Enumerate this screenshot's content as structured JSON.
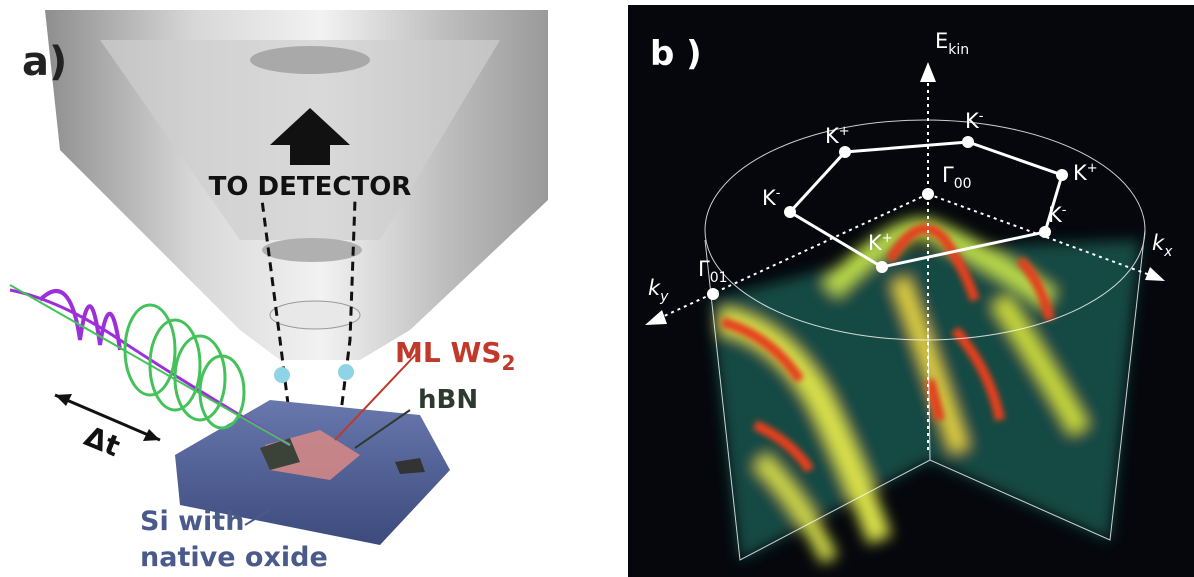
{
  "panel_a": {
    "label": "a)",
    "detector": "TO DETECTOR",
    "sample": {
      "main": "ML WS",
      "sub": "2"
    },
    "spacer": "hBN",
    "delay": "Δt",
    "substrate": [
      "Si with",
      "native oxide"
    ]
  },
  "panel_b": {
    "label": "b )",
    "energy_axis": {
      "main": "E",
      "sub": "kin"
    },
    "kx_axis": {
      "main": "k",
      "sub": "x"
    },
    "ky_axis": {
      "main": "k",
      "sub": "y"
    },
    "gamma_center": {
      "main": "Γ",
      "sub": "00"
    },
    "gamma_side": {
      "main": "Γ",
      "sub": "01"
    },
    "k_points": [
      {
        "main": "K",
        "sup": "+"
      },
      {
        "main": "K",
        "sup": "-"
      },
      {
        "main": "K",
        "sup": "+"
      },
      {
        "main": "K",
        "sup": "-"
      },
      {
        "main": "K",
        "sup": "+"
      },
      {
        "main": "K",
        "sup": "-"
      }
    ]
  }
}
